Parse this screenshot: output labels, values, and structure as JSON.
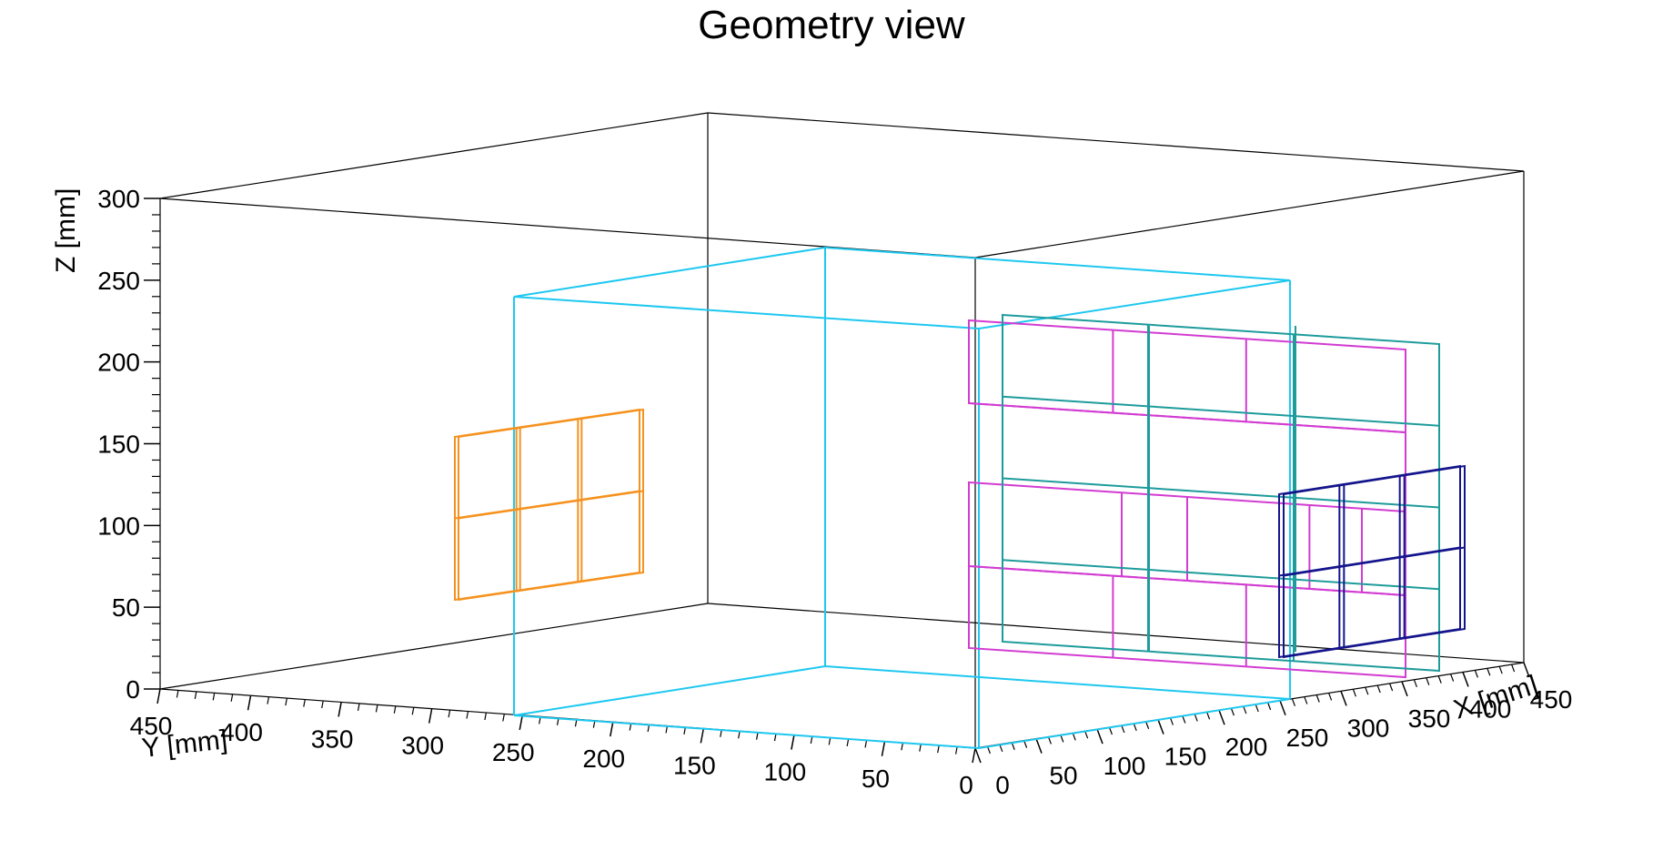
{
  "chart_data": {
    "type": "3d-geometry",
    "title": "Geometry view",
    "axes": {
      "x": {
        "label": "X [mm]",
        "range": [
          0,
          450
        ],
        "ticks": [
          0,
          50,
          100,
          150,
          200,
          250,
          300,
          350,
          400,
          450
        ]
      },
      "y": {
        "label": "Y [mm]",
        "range": [
          0,
          450
        ],
        "ticks": [
          0,
          50,
          100,
          150,
          200,
          250,
          300,
          350,
          400,
          450
        ]
      },
      "z": {
        "label": "Z [mm]",
        "range": [
          0,
          300
        ],
        "ticks": [
          0,
          50,
          100,
          150,
          200,
          250,
          300
        ]
      }
    },
    "colors": {
      "frame": "#000000",
      "volume": "#1ec8f0",
      "orange_detector": "#f5921e",
      "magenta_detector": "#d23cd2",
      "teal_detector": "#1e9b9b",
      "navy_detector": "#14148c"
    }
  }
}
